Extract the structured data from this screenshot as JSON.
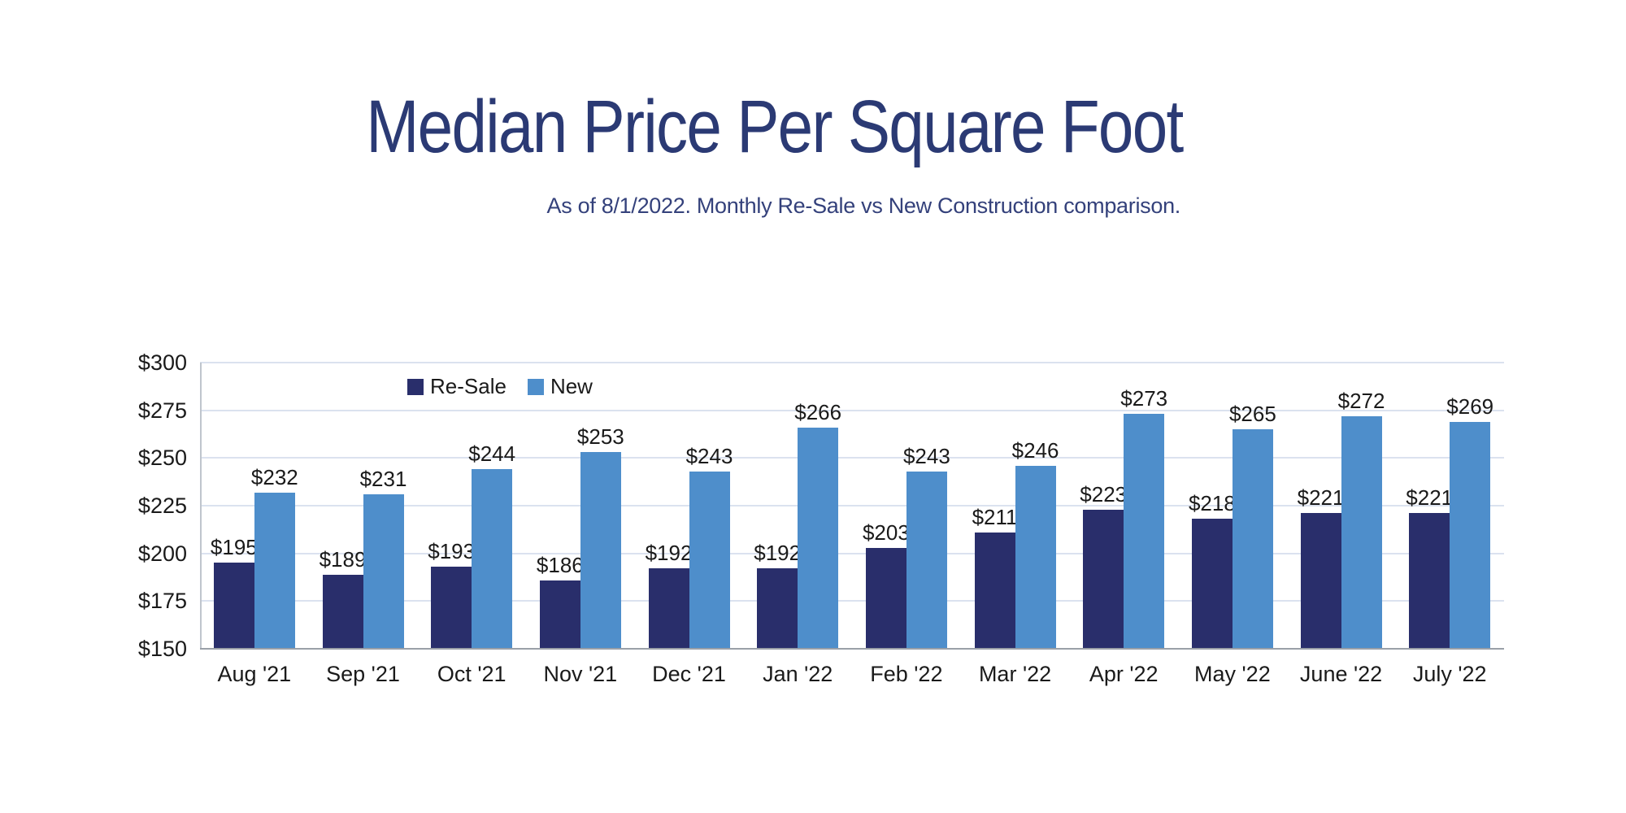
{
  "title": "Median Price Per Square Foot",
  "subtitle": "As of 8/1/2022. Monthly Re-Sale vs New Construction comparison.",
  "colors": {
    "title": "#2b3a74",
    "subtitle": "#34417b",
    "resale_bar": "#292e6b",
    "new_bar": "#4e8ecb",
    "gridline": "#dbe2ef",
    "baseline": "#9aa0a8",
    "text": "#1a1a1a"
  },
  "chart_data": {
    "type": "bar",
    "title": "Median Price Per Square Foot",
    "subtitle": "As of 8/1/2022. Monthly Re-Sale vs New Construction comparison.",
    "categories": [
      "Aug '21",
      "Sep '21",
      "Oct '21",
      "Nov '21",
      "Dec '21",
      "Jan '22",
      "Feb '22",
      "Mar '22",
      "Apr '22",
      "May '22",
      "June '22",
      "July '22"
    ],
    "series": [
      {
        "name": "Re-Sale",
        "color": "#292e6b",
        "values": [
          195,
          189,
          193,
          186,
          192,
          192,
          203,
          211,
          223,
          218,
          221,
          221
        ]
      },
      {
        "name": "New",
        "color": "#4e8ecb",
        "values": [
          232,
          231,
          244,
          253,
          243,
          266,
          243,
          246,
          273,
          265,
          272,
          269
        ]
      }
    ],
    "value_prefix": "$",
    "ytick_labels": [
      "$300",
      "$275",
      "$250",
      "$225",
      "$200",
      "$175",
      "$150"
    ],
    "ylim": [
      150,
      300
    ],
    "ytick_step": 25,
    "xlabel": "",
    "ylabel": "",
    "grid": true,
    "legend_position": "top-inside-left",
    "data_labels": true
  }
}
